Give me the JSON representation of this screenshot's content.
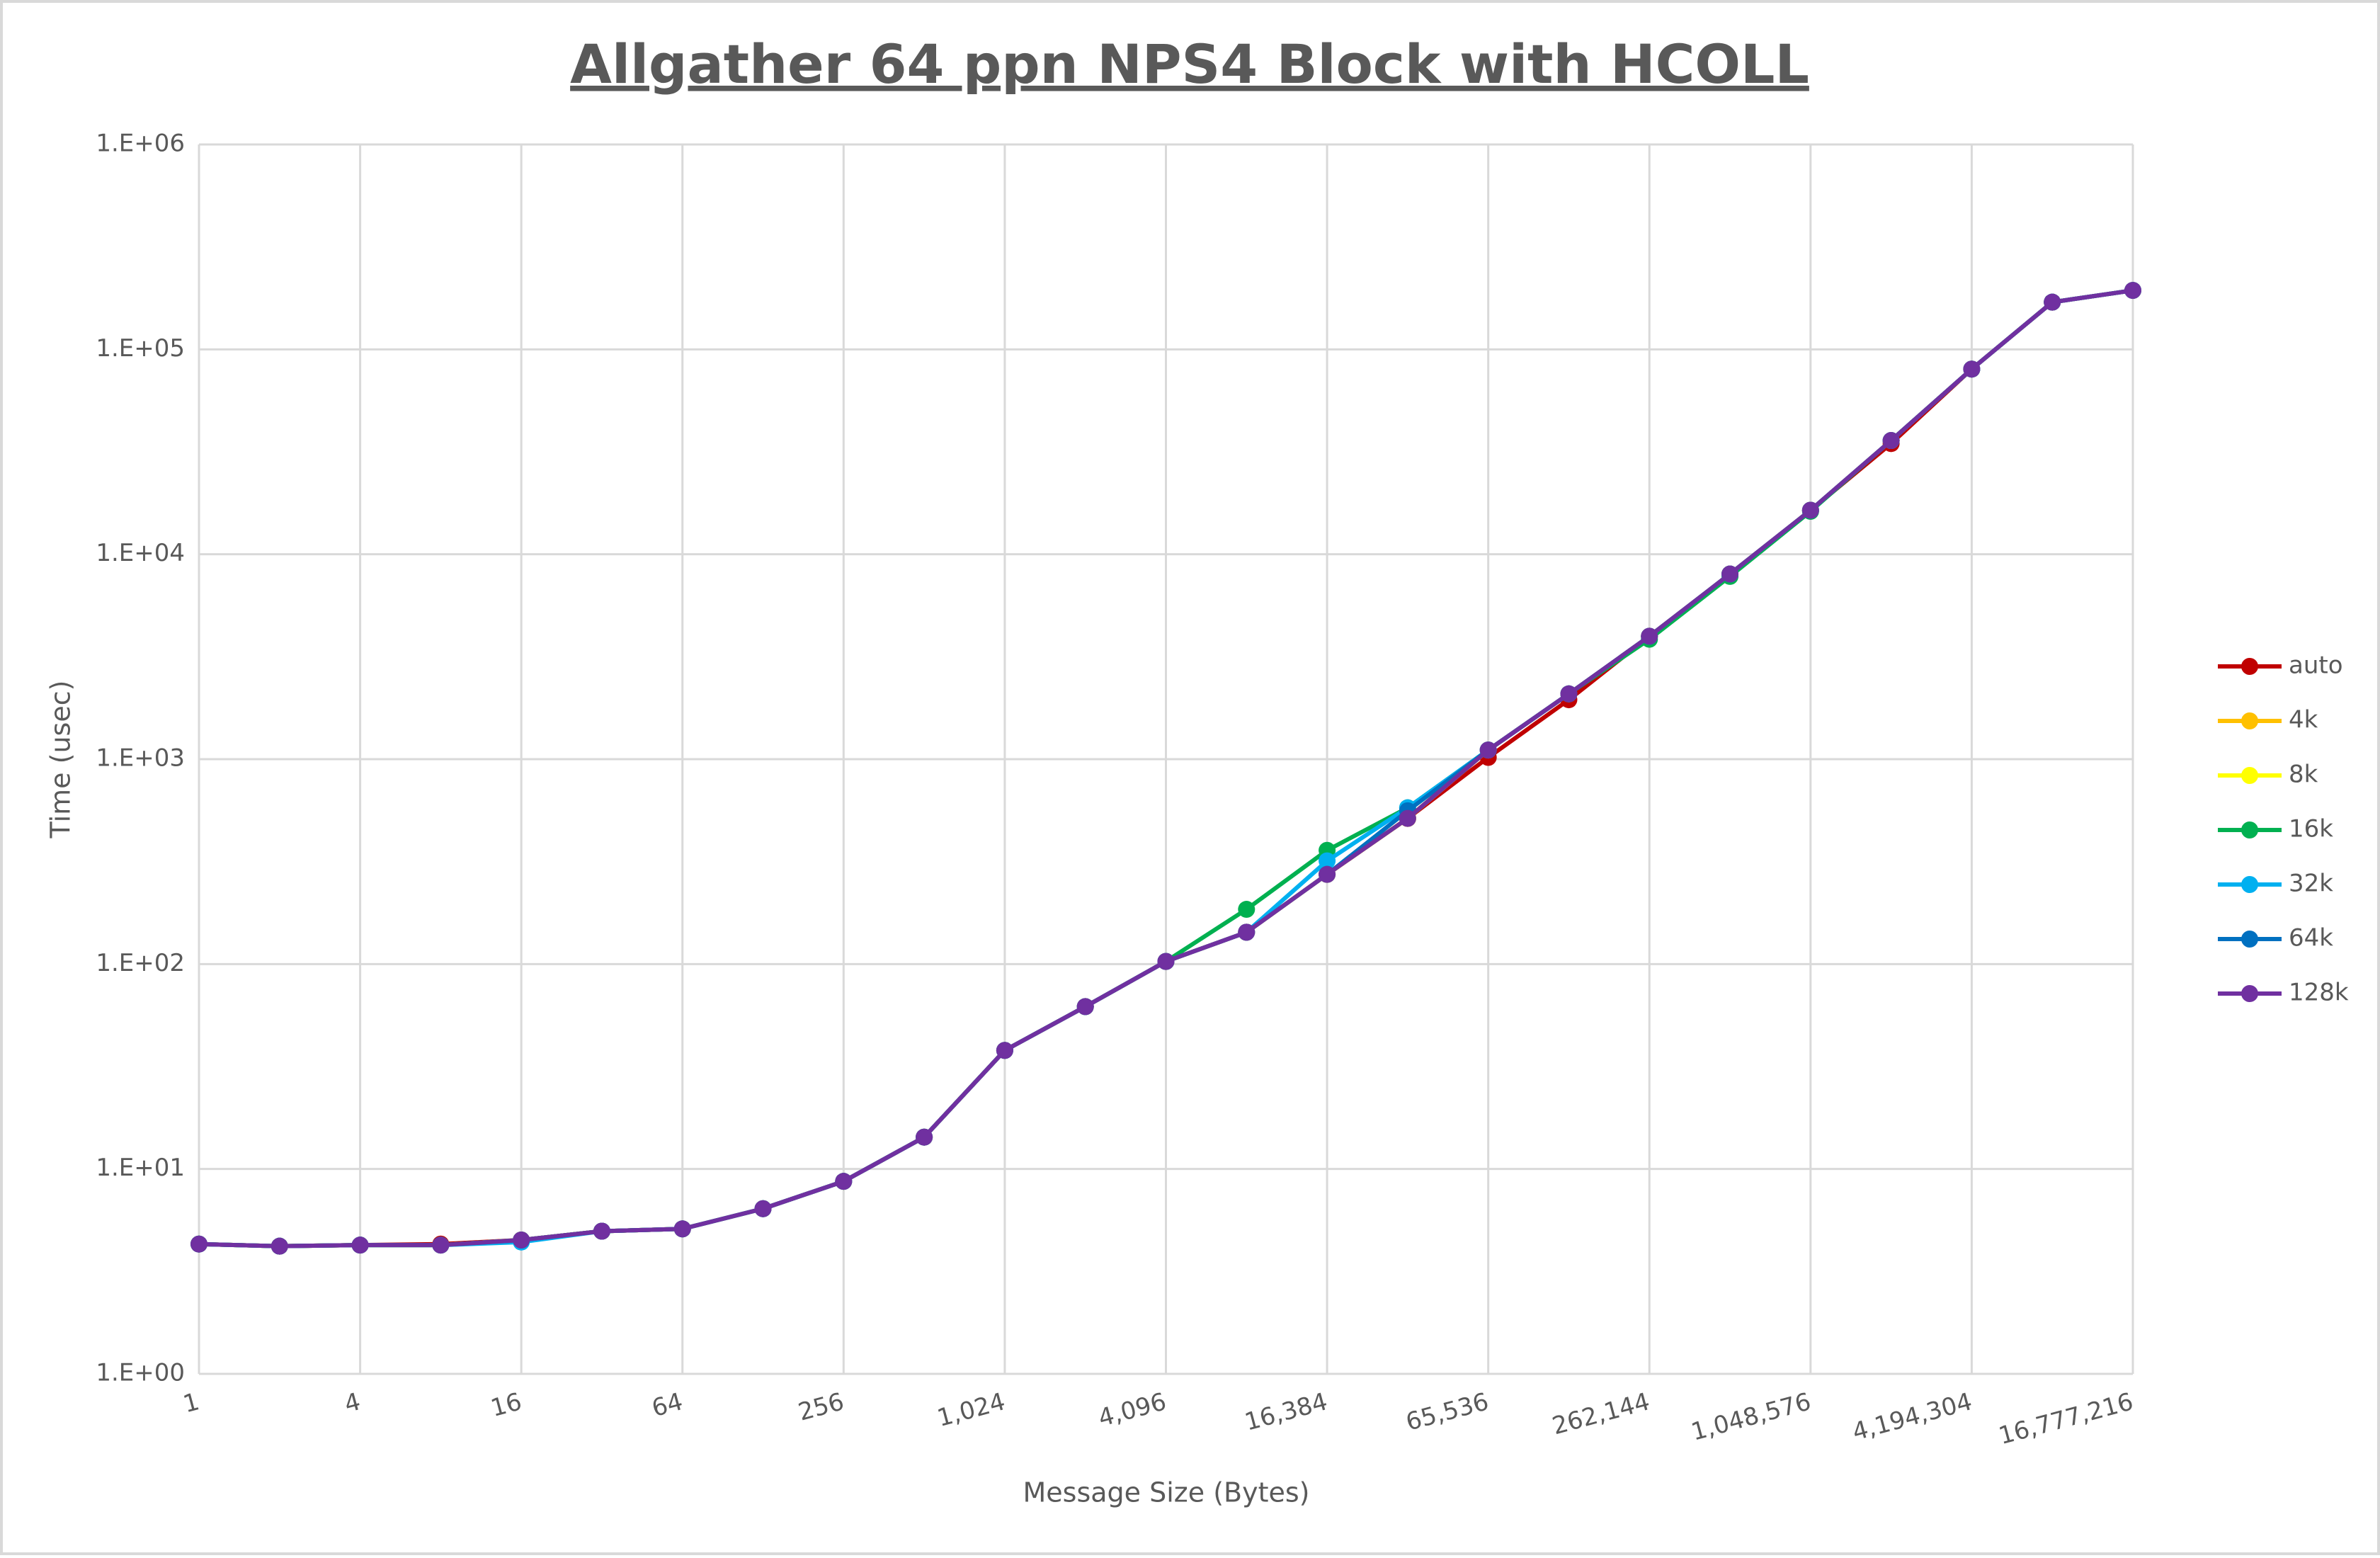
{
  "chart_data": {
    "type": "line",
    "title": "Allgather 64 ppn NPS4 Block with HCOLL",
    "x_label": "Message Size (Bytes)",
    "y_label": "Time (usec)",
    "x_scale": "log2",
    "y_scale": "log10",
    "grid": true,
    "legend": "right",
    "x": [
      1,
      2,
      4,
      8,
      16,
      32,
      64,
      128,
      256,
      512,
      1024,
      2048,
      4096,
      8192,
      16384,
      32768,
      65536,
      131072,
      262144,
      524288,
      1048576,
      2097152,
      4194304,
      8388608,
      16777216
    ],
    "xlim": [
      1,
      16777216
    ],
    "xticks": [
      1,
      4,
      16,
      64,
      256,
      {
        "value": 1024,
        "label": "1,024"
      },
      {
        "value": 4096,
        "label": "4,096"
      },
      {
        "value": 16384,
        "label": "16,384"
      },
      {
        "value": 65536,
        "label": "65,536"
      },
      {
        "value": 262144,
        "label": "262,144"
      },
      {
        "value": 1048576,
        "label": "1,048,576"
      },
      {
        "value": 4194304,
        "label": "4,194,304"
      },
      {
        "value": 16777216,
        "label": "16,777,216"
      }
    ],
    "ylim": [
      1,
      1000000
    ],
    "yticks": [
      {
        "value": 1,
        "label": "1.E+00"
      },
      {
        "value": 10,
        "label": "1.E+01"
      },
      {
        "value": 100,
        "label": "1.E+02"
      },
      {
        "value": 1000,
        "label": "1.E+03"
      },
      {
        "value": 10000,
        "label": "1.E+04"
      },
      {
        "value": 100000,
        "label": "1.E+05"
      },
      {
        "value": 1000000,
        "label": "1.E+06"
      }
    ],
    "series": [
      {
        "name": "auto",
        "color": "#c00000",
        "values": [
          4.3,
          4.2,
          4.25,
          4.3,
          4.5,
          4.97,
          5.1,
          6.4,
          8.7,
          14.3,
          37.9,
          62,
          103,
          143,
          274,
          514,
          1020,
          1950,
          3980,
          8010,
          16400,
          34700,
          80100,
          170000,
          194000
        ]
      },
      {
        "name": "4k",
        "color": "#ffc000",
        "values": [
          4.3,
          4.2,
          4.25,
          4.25,
          4.5,
          4.97,
          5.1,
          6.4,
          8.7,
          14.3,
          37.9,
          62,
          103,
          143,
          274,
          514,
          1108,
          2083,
          3980,
          8010,
          16400,
          35900,
          80100,
          170000,
          194000
        ]
      },
      {
        "name": "8k",
        "color": "#ffff00",
        "values": [
          4.3,
          4.2,
          4.25,
          4.25,
          4.5,
          4.97,
          5.1,
          6.4,
          8.7,
          14.3,
          37.9,
          62,
          103,
          143,
          274,
          514,
          1108,
          2083,
          3980,
          8010,
          16400,
          35900,
          80100,
          170000,
          194000
        ]
      },
      {
        "name": "16k",
        "color": "#00b050",
        "values": [
          4.3,
          4.2,
          4.25,
          4.25,
          4.5,
          4.97,
          5.1,
          6.4,
          8.7,
          14.3,
          37.9,
          62,
          103,
          185,
          359,
          579,
          1108,
          2083,
          3850,
          7800,
          16200,
          35900,
          80100,
          170000,
          194000
        ]
      },
      {
        "name": "32k",
        "color": "#00b0f0",
        "values": [
          4.3,
          4.2,
          4.25,
          4.25,
          4.4,
          4.97,
          5.1,
          6.4,
          8.7,
          14.3,
          37.9,
          62,
          103,
          143,
          319,
          579,
          1108,
          2083,
          3980,
          8010,
          16400,
          35900,
          80100,
          170000,
          194000
        ]
      },
      {
        "name": "64k",
        "color": "#0070c0",
        "values": [
          4.3,
          4.2,
          4.25,
          4.25,
          4.5,
          4.97,
          5.1,
          6.4,
          8.7,
          14.3,
          37.9,
          62,
          103,
          143,
          274,
          560,
          1108,
          2083,
          3980,
          8010,
          16400,
          35900,
          80100,
          170000,
          194000
        ]
      },
      {
        "name": "128k",
        "color": "#7030a0",
        "values": [
          4.3,
          4.2,
          4.25,
          4.25,
          4.5,
          4.97,
          5.1,
          6.4,
          8.7,
          14.3,
          37.9,
          62,
          103,
          143,
          274,
          514,
          1108,
          2083,
          3980,
          8010,
          16400,
          35900,
          80100,
          170000,
          194000
        ]
      }
    ]
  }
}
